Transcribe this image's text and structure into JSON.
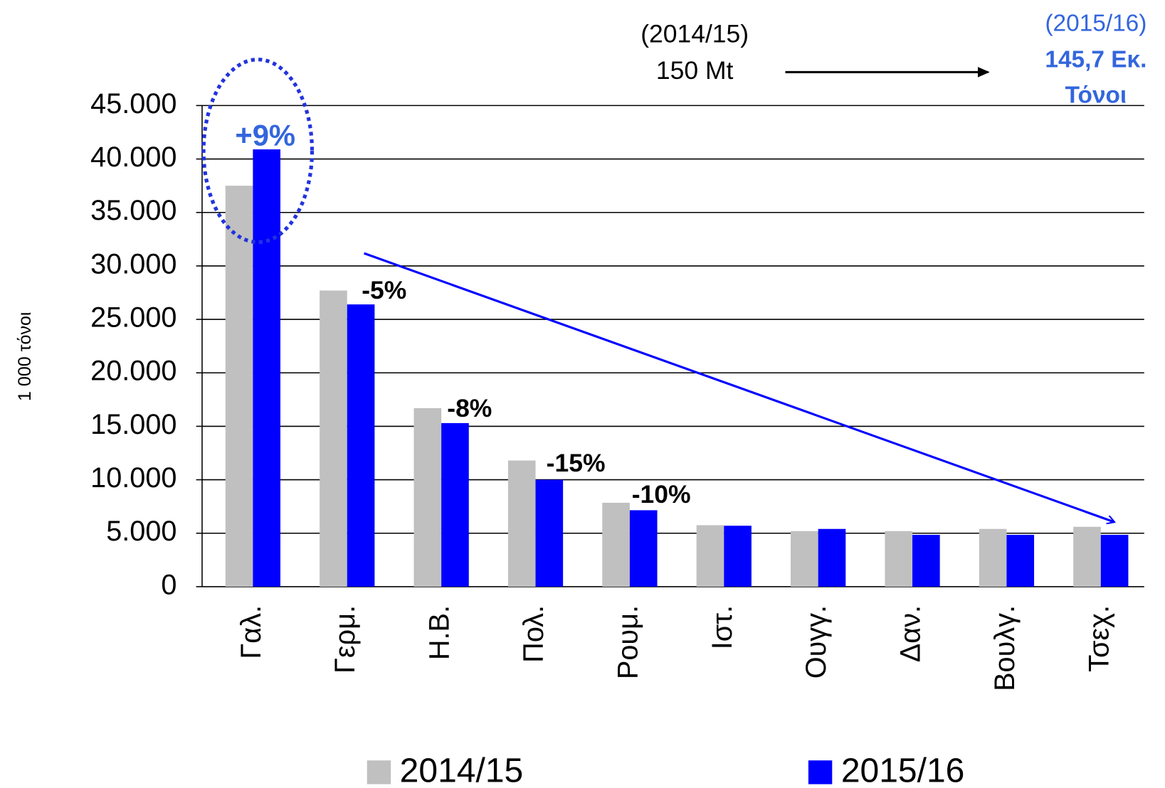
{
  "chart_data": {
    "type": "bar",
    "y_axis_label": "1 000 τόνοι",
    "categories": [
      "Γαλ.",
      "Γερμ.",
      "Η.Β.",
      "Πολ.",
      "Ρουμ.",
      "Ιστ.",
      "Ουγγ.",
      "Δαν.",
      "Βουλγ.",
      "Τσεχ."
    ],
    "series": [
      {
        "name": "2014/15",
        "color": "#c0c0c0",
        "values": [
          37500,
          27700,
          16700,
          11800,
          7850,
          5750,
          5200,
          5200,
          5400,
          5600
        ]
      },
      {
        "name": "2015/16",
        "color": "#0000ff",
        "values": [
          40900,
          26400,
          15300,
          10000,
          7150,
          5700,
          5400,
          4850,
          4850,
          4850
        ]
      }
    ],
    "ylim": [
      0,
      45000
    ],
    "yticks": [
      0,
      {
        "value": 5000,
        "label": "5.000"
      },
      {
        "value": 10000,
        "label": "10.000"
      },
      {
        "value": 15000,
        "label": "15.000"
      },
      {
        "value": 20000,
        "label": "20.000"
      },
      {
        "value": 25000,
        "label": "25.000"
      },
      {
        "value": 30000,
        "label": "30.000"
      },
      {
        "value": 35000,
        "label": "35.000"
      },
      {
        "value": 40000,
        "label": "40.000"
      },
      {
        "value": 45000,
        "label": "45.000"
      }
    ],
    "grid": true,
    "annotations": [
      "+9%",
      "-5%",
      "-8%",
      "-15%",
      "-10%"
    ],
    "total_left": [
      "(2014/15)",
      "150 Mt"
    ],
    "total_right": [
      "(2015/16)",
      "145,7 Εκ.",
      "Τόνοι"
    ]
  }
}
